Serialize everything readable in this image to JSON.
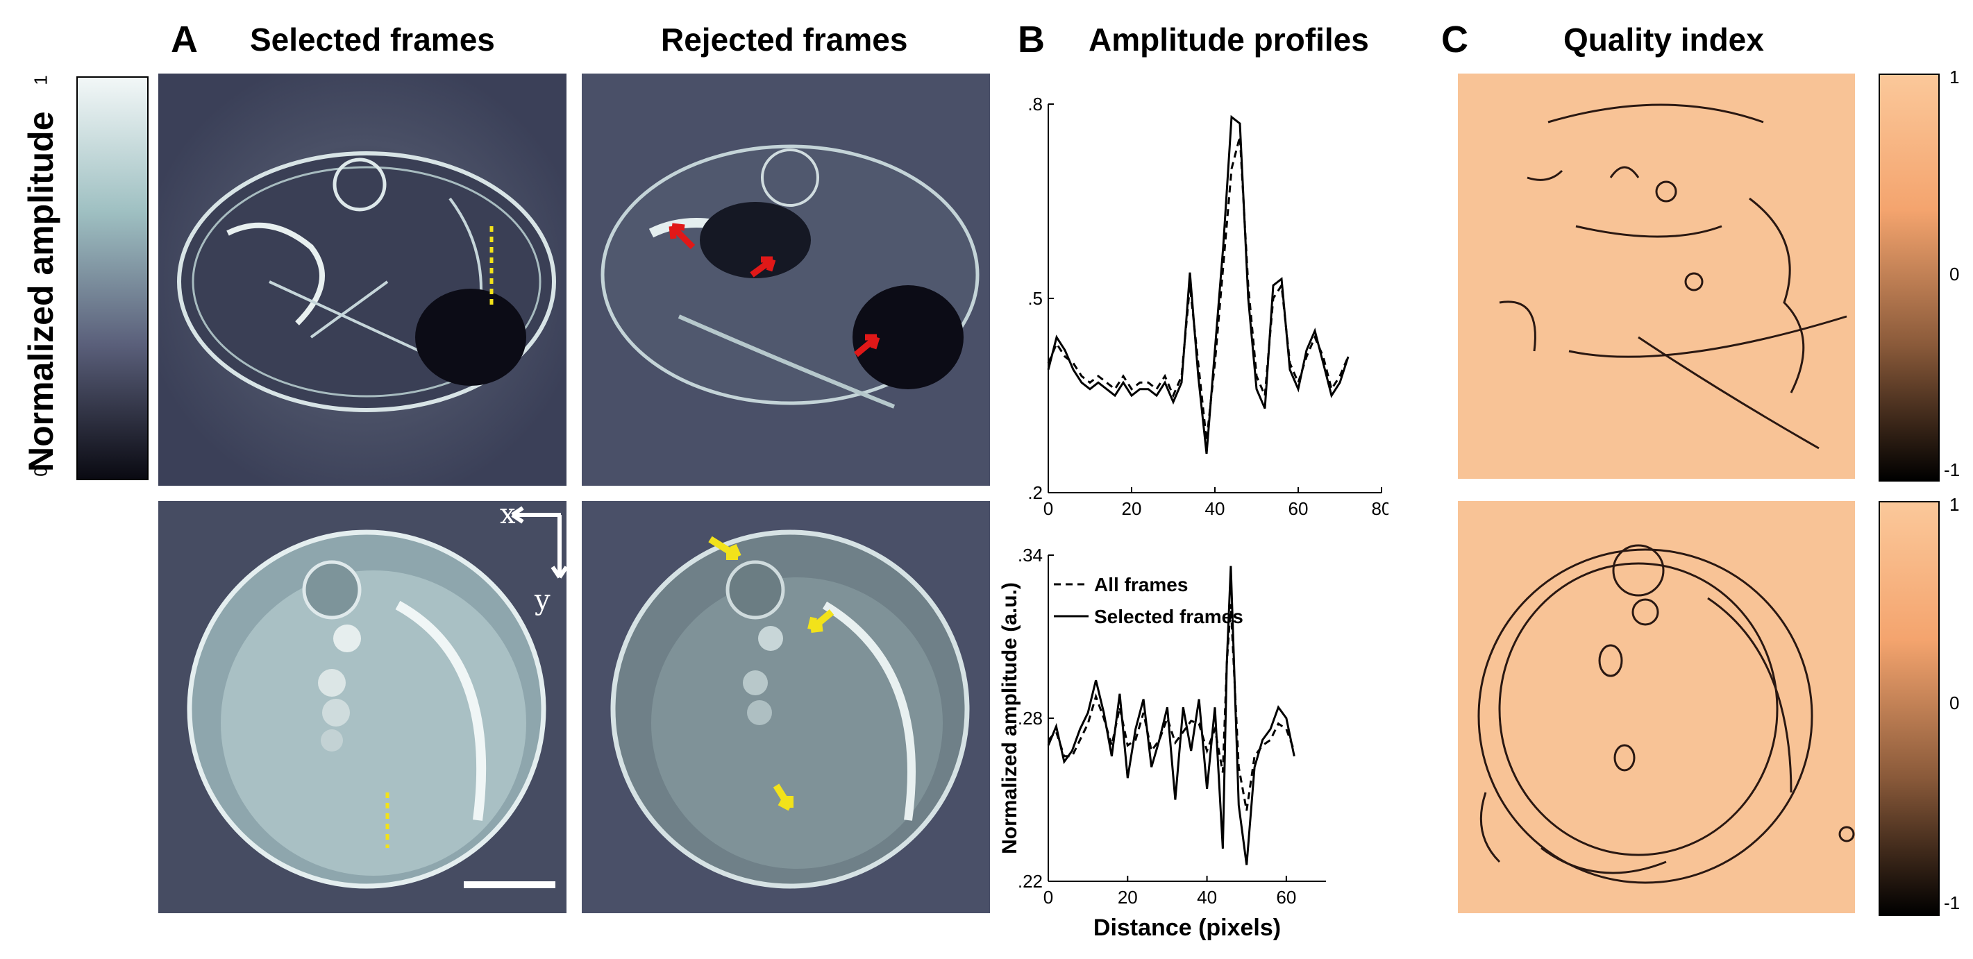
{
  "panels": {
    "a_letter": "A",
    "b_letter": "B",
    "c_letter": "C"
  },
  "headers": {
    "selected": "Selected frames",
    "rejected": "Rejected frames",
    "amplitude": "Amplitude profiles",
    "quality": "Quality index"
  },
  "amplitude_colorbar": {
    "label": "Normalized amplitude",
    "ticks": [
      "1",
      "0"
    ],
    "colors": [
      "#f2f7f7",
      "#9fc0c2",
      "#5a5f7a",
      "#0a0a12"
    ]
  },
  "axes_glyph": {
    "x": "x",
    "y": "y"
  },
  "quality_colorbar": {
    "ticks": [
      "1",
      "0",
      "-1"
    ],
    "colors": [
      "#fbc89a",
      "#f4a46e",
      "#8a5a3a",
      "#000000"
    ]
  },
  "chart_data": [
    {
      "type": "line",
      "title": "Amplitude profiles",
      "xlim": [
        0,
        80
      ],
      "ylim": [
        0.2,
        0.8
      ],
      "xticks": [
        "0",
        "20",
        "40",
        "60",
        "80"
      ],
      "yticks": [
        ".2",
        ".5",
        ".8"
      ],
      "x": [
        0,
        2,
        4,
        6,
        8,
        10,
        12,
        14,
        16,
        18,
        20,
        22,
        24,
        26,
        28,
        30,
        32,
        34,
        36,
        38,
        40,
        42,
        44,
        46,
        48,
        50,
        52,
        54,
        56,
        58,
        60,
        62,
        64,
        66,
        68,
        70,
        72
      ],
      "series": [
        {
          "name": "All frames",
          "style": "dashed",
          "values": [
            0.4,
            0.43,
            0.41,
            0.4,
            0.38,
            0.37,
            0.38,
            0.37,
            0.36,
            0.38,
            0.36,
            0.37,
            0.37,
            0.36,
            0.38,
            0.35,
            0.38,
            0.52,
            0.4,
            0.28,
            0.4,
            0.55,
            0.7,
            0.75,
            0.52,
            0.38,
            0.35,
            0.5,
            0.52,
            0.4,
            0.37,
            0.41,
            0.44,
            0.41,
            0.36,
            0.38,
            0.41
          ]
        },
        {
          "name": "Selected frames",
          "style": "solid",
          "values": [
            0.39,
            0.44,
            0.42,
            0.39,
            0.37,
            0.36,
            0.37,
            0.36,
            0.35,
            0.37,
            0.35,
            0.36,
            0.36,
            0.35,
            0.37,
            0.34,
            0.37,
            0.54,
            0.38,
            0.26,
            0.42,
            0.58,
            0.78,
            0.77,
            0.5,
            0.36,
            0.33,
            0.52,
            0.53,
            0.39,
            0.36,
            0.42,
            0.45,
            0.4,
            0.35,
            0.37,
            0.41
          ]
        }
      ]
    },
    {
      "type": "line",
      "xlabel": "Distance (pixels)",
      "ylabel": "Normalized amplitude (a.u.)",
      "xlim": [
        0,
        70
      ],
      "ylim": [
        0.22,
        0.34
      ],
      "xticks": [
        "0",
        "20",
        "40",
        "60"
      ],
      "yticks": [
        ".22",
        ".28",
        ".34"
      ],
      "legend": [
        "All frames",
        "Selected frames"
      ],
      "x": [
        0,
        2,
        4,
        6,
        8,
        10,
        12,
        14,
        16,
        18,
        20,
        22,
        24,
        26,
        28,
        30,
        32,
        34,
        36,
        38,
        40,
        42,
        44,
        45,
        46,
        48,
        50,
        52,
        54,
        56,
        58,
        60,
        62
      ],
      "series": [
        {
          "name": "All frames",
          "style": "dashed",
          "values": [
            0.272,
            0.275,
            0.266,
            0.266,
            0.272,
            0.278,
            0.288,
            0.28,
            0.27,
            0.284,
            0.27,
            0.272,
            0.282,
            0.268,
            0.272,
            0.28,
            0.271,
            0.275,
            0.279,
            0.278,
            0.268,
            0.276,
            0.26,
            0.3,
            0.322,
            0.262,
            0.246,
            0.266,
            0.27,
            0.272,
            0.278,
            0.276,
            0.268
          ]
        },
        {
          "name": "Selected frames",
          "style": "solid",
          "values": [
            0.27,
            0.277,
            0.264,
            0.268,
            0.276,
            0.282,
            0.294,
            0.282,
            0.266,
            0.289,
            0.258,
            0.276,
            0.287,
            0.262,
            0.272,
            0.284,
            0.25,
            0.284,
            0.268,
            0.287,
            0.254,
            0.284,
            0.232,
            0.3,
            0.336,
            0.248,
            0.226,
            0.262,
            0.272,
            0.276,
            0.284,
            0.28,
            0.266
          ]
        }
      ]
    }
  ]
}
